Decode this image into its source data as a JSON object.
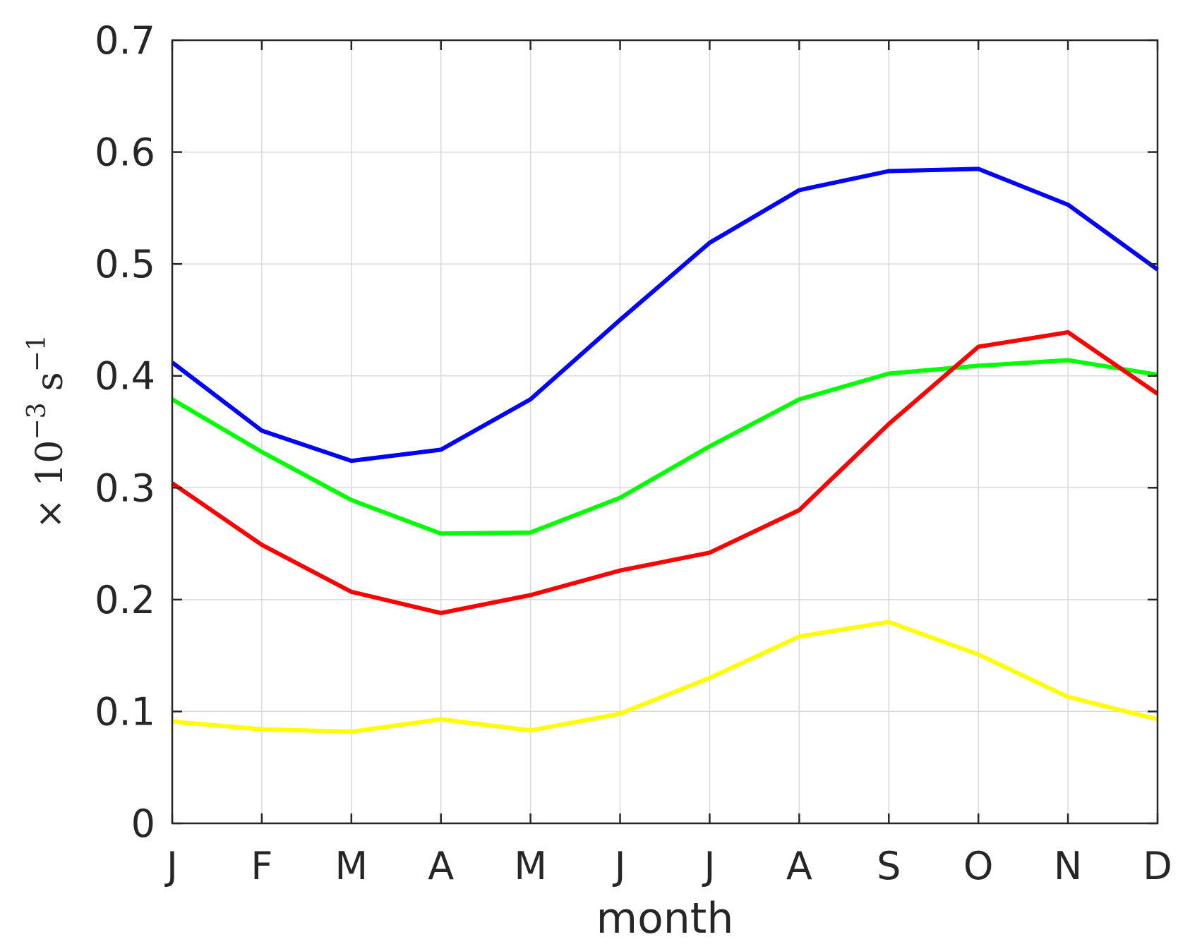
{
  "chart_data": {
    "type": "line",
    "categories": [
      "J",
      "F",
      "M",
      "A",
      "M",
      "J",
      "J",
      "A",
      "S",
      "O",
      "N",
      "D"
    ],
    "xlabel": "month",
    "ylabel": {
      "prefix": "× 10",
      "exponent": "−3",
      "unit": "s",
      "unit_exponent": "−1"
    },
    "ylim": [
      0,
      0.7
    ],
    "yticks": [
      "0",
      "0.1",
      "0.2",
      "0.3",
      "0.4",
      "0.5",
      "0.6",
      "0.7"
    ],
    "grid": true,
    "series": [
      {
        "color": "#0000ff",
        "values": [
          0.412,
          0.351,
          0.324,
          0.334,
          0.379,
          0.45,
          0.519,
          0.566,
          0.583,
          0.585,
          0.553,
          0.495
        ]
      },
      {
        "color": "#00ff00",
        "values": [
          0.379,
          0.332,
          0.289,
          0.259,
          0.26,
          0.291,
          0.337,
          0.379,
          0.402,
          0.409,
          0.414,
          0.401
        ]
      },
      {
        "color": "#ff0000",
        "values": [
          0.304,
          0.249,
          0.207,
          0.188,
          0.204,
          0.226,
          0.242,
          0.28,
          0.357,
          0.426,
          0.439,
          0.384
        ]
      },
      {
        "color": "#ffff00",
        "values": [
          0.091,
          0.084,
          0.082,
          0.093,
          0.083,
          0.098,
          0.13,
          0.167,
          0.18,
          0.151,
          0.113,
          0.093
        ]
      }
    ]
  }
}
